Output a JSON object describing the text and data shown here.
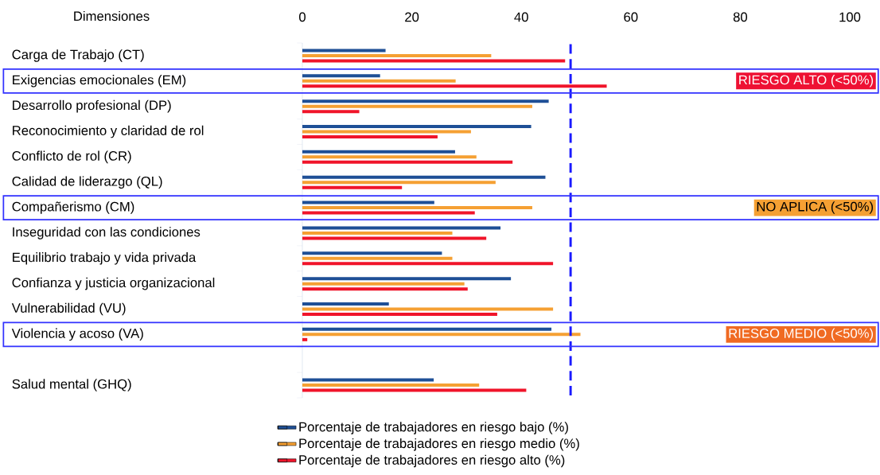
{
  "chart_data": {
    "type": "bar",
    "orientation": "horizontal",
    "ylabel": "Dimensiones",
    "categories": [
      "Carga de Trabajo (CT)",
      "Exigencias emocionales (EM)",
      "Desarrollo profesional (DP)",
      "Reconocimiento y claridad de rol",
      "Conflicto de rol (CR)",
      "Calidad de liderazgo (QL)",
      "Compañerismo (CM)",
      "Inseguridad con las condiciones",
      "Equilibrio trabajo y vida privada",
      "Confianza y justicia organizacional",
      "Vulnerabilidad (VU)",
      "Violencia y acoso (VA)",
      null,
      "Salud mental (GHQ)"
    ],
    "xlim": [
      0,
      100
    ],
    "xticks": [
      0,
      20,
      40,
      60,
      80,
      100
    ],
    "grid": false,
    "legend": "bottom",
    "series": [
      {
        "name": "Porcentaje de trabajadores en riesgo bajo (%)",
        "color": "#1e4f96",
        "values": [
          15.2,
          14.2,
          45.0,
          41.8,
          27.9,
          44.4,
          24.1,
          36.2,
          25.5,
          38.1,
          15.8,
          45.5,
          null,
          24.0
        ]
      },
      {
        "name": "Porcentaje de trabajadores en riesgo medio (%)",
        "color": "#f5a033",
        "values": [
          34.5,
          28.0,
          42.0,
          30.8,
          31.8,
          35.3,
          42.0,
          27.4,
          27.4,
          29.6,
          45.8,
          50.8,
          null,
          32.3
        ]
      },
      {
        "name": "Porcentaje de trabajadores en riesgo alto (%)",
        "color": "#f0142a",
        "values": [
          48.0,
          55.6,
          10.4,
          24.7,
          38.4,
          18.2,
          31.5,
          33.6,
          45.8,
          30.2,
          35.6,
          0.9,
          null,
          40.9
        ]
      }
    ],
    "ref_lines": [
      {
        "axis": "x",
        "value": 49,
        "color": "#1a1aff",
        "line_style": "dashed"
      }
    ],
    "annotations": [
      "RIESGO ALTO (<50%)",
      "NO APLICA (<50%)",
      "RIESGO MEDIO (<50%)"
    ]
  }
}
